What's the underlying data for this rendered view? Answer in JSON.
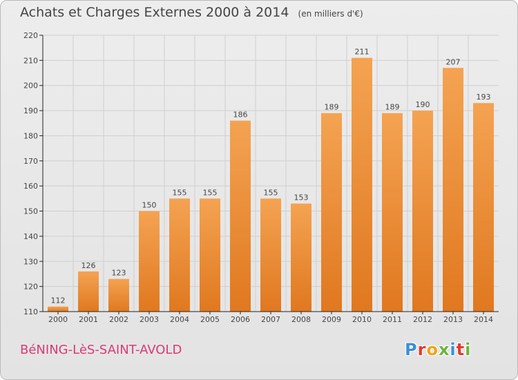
{
  "title": "Achats et Charges Externes 2000 à 2014",
  "unit": "(en milliers d'€)",
  "location": "BéNING-LèS-SAINT-AVOLD",
  "logo": {
    "text": "Proxiti",
    "colors": [
      "#3a8fd6",
      "#e0392f",
      "#f3a219",
      "#6cb33e",
      "#3a8fd6",
      "#e0392f",
      "#6cb33e"
    ]
  },
  "colors": {
    "bar_top": "#f4a352",
    "bar_bottom": "#e0781f",
    "axis": "#222222",
    "grid": "#cfcfcf",
    "text": "#444444"
  },
  "chart_data": {
    "type": "bar",
    "categories": [
      "2000",
      "2001",
      "2002",
      "2003",
      "2004",
      "2005",
      "2006",
      "2007",
      "2008",
      "2009",
      "2010",
      "2011",
      "2012",
      "2013",
      "2014"
    ],
    "values": [
      112,
      126,
      123,
      150,
      155,
      155,
      186,
      155,
      153,
      189,
      211,
      189,
      190,
      207,
      193
    ],
    "ylim": [
      110,
      220
    ],
    "yticks": [
      110,
      120,
      130,
      140,
      150,
      160,
      170,
      180,
      190,
      200,
      210,
      220
    ],
    "grid": true,
    "xlabel": "",
    "ylabel": ""
  }
}
